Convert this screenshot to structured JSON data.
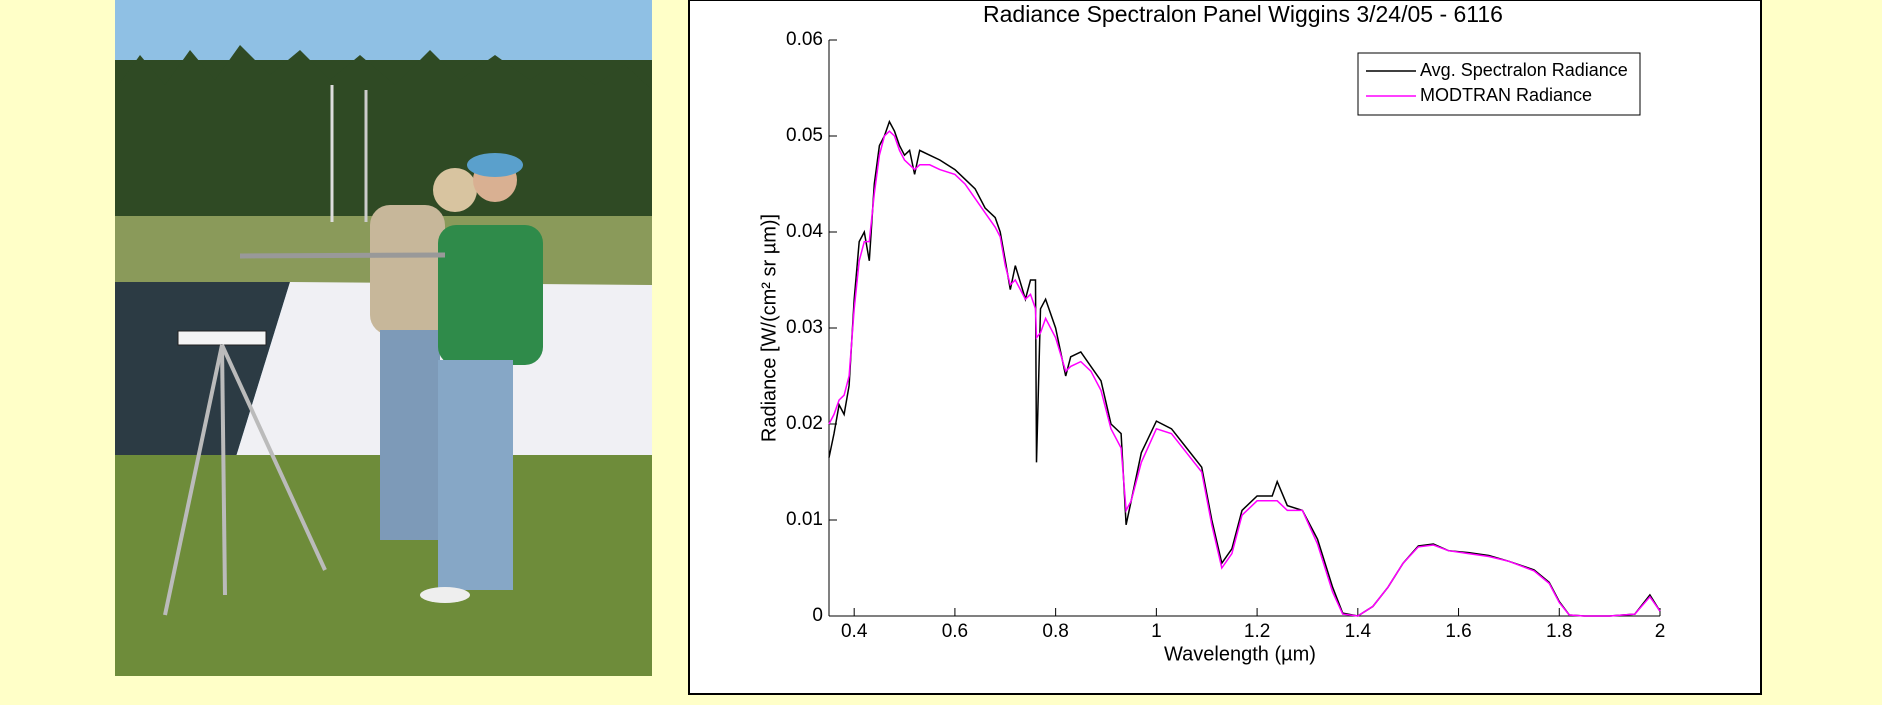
{
  "chart_data": {
    "type": "line",
    "title": "Radiance Spectralon Panel Wiggins 3/24/05 - 6116",
    "x_label": "Wavelength (µm)",
    "y_label": "Radiance [W/(cm² sr µm)]",
    "xlim": [
      0.35,
      2
    ],
    "ylim": [
      0,
      0.06
    ],
    "xticks": [
      0.4,
      0.6,
      0.8,
      1,
      1.2,
      1.4,
      1.6,
      1.8,
      2
    ],
    "yticks": [
      0,
      0.01,
      0.02,
      0.03,
      0.04,
      0.05,
      0.06
    ],
    "legend": "upper right",
    "x": [
      0.35,
      0.36,
      0.37,
      0.38,
      0.39,
      0.4,
      0.41,
      0.42,
      0.43,
      0.44,
      0.45,
      0.46,
      0.47,
      0.48,
      0.49,
      0.5,
      0.51,
      0.52,
      0.53,
      0.55,
      0.57,
      0.6,
      0.62,
      0.64,
      0.66,
      0.68,
      0.69,
      0.7,
      0.71,
      0.72,
      0.74,
      0.75,
      0.76,
      0.762,
      0.77,
      0.78,
      0.8,
      0.82,
      0.83,
      0.85,
      0.87,
      0.89,
      0.91,
      0.93,
      0.94,
      0.95,
      0.97,
      1.0,
      1.03,
      1.06,
      1.09,
      1.11,
      1.13,
      1.15,
      1.17,
      1.2,
      1.23,
      1.24,
      1.26,
      1.29,
      1.32,
      1.35,
      1.37,
      1.4,
      1.43,
      1.46,
      1.49,
      1.52,
      1.55,
      1.58,
      1.62,
      1.66,
      1.7,
      1.75,
      1.78,
      1.8,
      1.82,
      1.85,
      1.9,
      1.95,
      1.98,
      2.0
    ],
    "series": [
      {
        "name": "Avg. Spectralon Radiance",
        "color": "#000000",
        "values": [
          0.0165,
          0.019,
          0.022,
          0.021,
          0.024,
          0.033,
          0.039,
          0.04,
          0.037,
          0.045,
          0.049,
          0.05,
          0.0515,
          0.0505,
          0.049,
          0.048,
          0.0485,
          0.046,
          0.0485,
          0.048,
          0.0475,
          0.0465,
          0.0455,
          0.0445,
          0.0425,
          0.0415,
          0.04,
          0.037,
          0.034,
          0.0365,
          0.033,
          0.035,
          0.035,
          0.016,
          0.032,
          0.033,
          0.03,
          0.025,
          0.027,
          0.0275,
          0.026,
          0.0245,
          0.02,
          0.019,
          0.0095,
          0.012,
          0.017,
          0.0203,
          0.0195,
          0.0175,
          0.0155,
          0.01,
          0.0055,
          0.007,
          0.011,
          0.0125,
          0.0125,
          0.014,
          0.0115,
          0.011,
          0.008,
          0.003,
          0.0003,
          0,
          0.001,
          0.003,
          0.0055,
          0.0073,
          0.0075,
          0.0068,
          0.0066,
          0.0063,
          0.0057,
          0.0048,
          0.0035,
          0.0015,
          0.0001,
          0,
          0,
          0.0002,
          0.0022,
          0.0005
        ]
      },
      {
        "name": "MODTRAN Radiance",
        "color": "#ff00ff",
        "values": [
          0.02,
          0.021,
          0.0225,
          0.023,
          0.025,
          0.032,
          0.037,
          0.039,
          0.039,
          0.044,
          0.048,
          0.05,
          0.0505,
          0.05,
          0.0485,
          0.0475,
          0.047,
          0.0465,
          0.047,
          0.047,
          0.0465,
          0.046,
          0.045,
          0.0435,
          0.042,
          0.0405,
          0.0395,
          0.0365,
          0.0345,
          0.035,
          0.033,
          0.0335,
          0.032,
          0.029,
          0.0295,
          0.031,
          0.029,
          0.0255,
          0.026,
          0.0265,
          0.0255,
          0.0235,
          0.0195,
          0.0175,
          0.011,
          0.012,
          0.016,
          0.0195,
          0.019,
          0.017,
          0.015,
          0.0095,
          0.005,
          0.0065,
          0.0105,
          0.012,
          0.012,
          0.012,
          0.011,
          0.011,
          0.0075,
          0.0025,
          0.0002,
          0,
          0.001,
          0.003,
          0.0055,
          0.0072,
          0.0074,
          0.0068,
          0.0065,
          0.0062,
          0.0057,
          0.0047,
          0.0034,
          0.0014,
          0.0001,
          0,
          0,
          0.0002,
          0.002,
          0.0005
        ]
      }
    ]
  }
}
